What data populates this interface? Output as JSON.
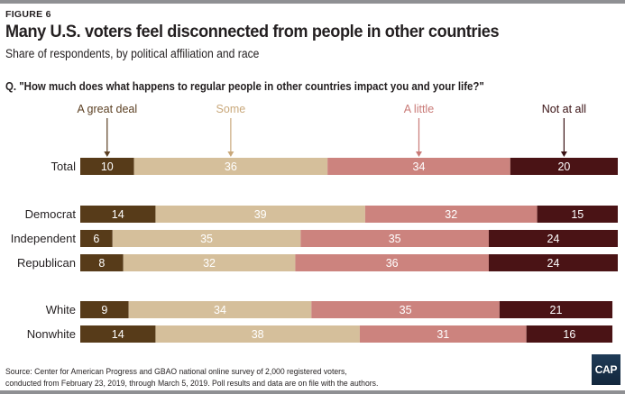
{
  "figure_label": "FIGURE 6",
  "title": "Many U.S. voters feel disconnected from people in other countries",
  "subtitle": "Share of respondents, by political affiliation and race",
  "question": "Q. \"How much does what happens to regular people in other countries impact you and your life?\"",
  "source_line1": "Source: Center for American Progress and GBAO national online survey of 2,000 registered voters,",
  "source_line2": "conducted from February 23, 2019, through March 5, 2019. Poll results and data are on file with the authors.",
  "logo_text": "CAP",
  "chart_data": {
    "type": "bar",
    "orientation": "horizontal-stacked-100",
    "title": "Many U.S. voters feel disconnected from people in other countries",
    "subtitle": "Share of respondents, by political affiliation and race",
    "legend_placement": "top (annotated with arrows above Total bar)",
    "xlim": [
      0,
      100
    ],
    "categories": [
      "Total",
      "Democrat",
      "Independent",
      "Republican",
      "White",
      "Nonwhite"
    ],
    "groups": [
      [
        "Total"
      ],
      [
        "Democrat",
        "Independent",
        "Republican"
      ],
      [
        "White",
        "Nonwhite"
      ]
    ],
    "series": [
      {
        "name": "A great deal",
        "color": "#573b19",
        "label_color": "#5c4023",
        "values": [
          10,
          14,
          6,
          8,
          9,
          14
        ]
      },
      {
        "name": "Some",
        "color": "#d5bf9b",
        "label_color": "#c9a87b",
        "values": [
          36,
          39,
          35,
          32,
          34,
          38
        ]
      },
      {
        "name": "A little",
        "color": "#cc837e",
        "label_color": "#c97a77",
        "values": [
          34,
          32,
          35,
          36,
          35,
          31
        ]
      },
      {
        "name": "Not at all",
        "color": "#4a1315",
        "label_color": "#3a1214",
        "values": [
          20,
          15,
          24,
          24,
          21,
          16
        ]
      }
    ]
  }
}
